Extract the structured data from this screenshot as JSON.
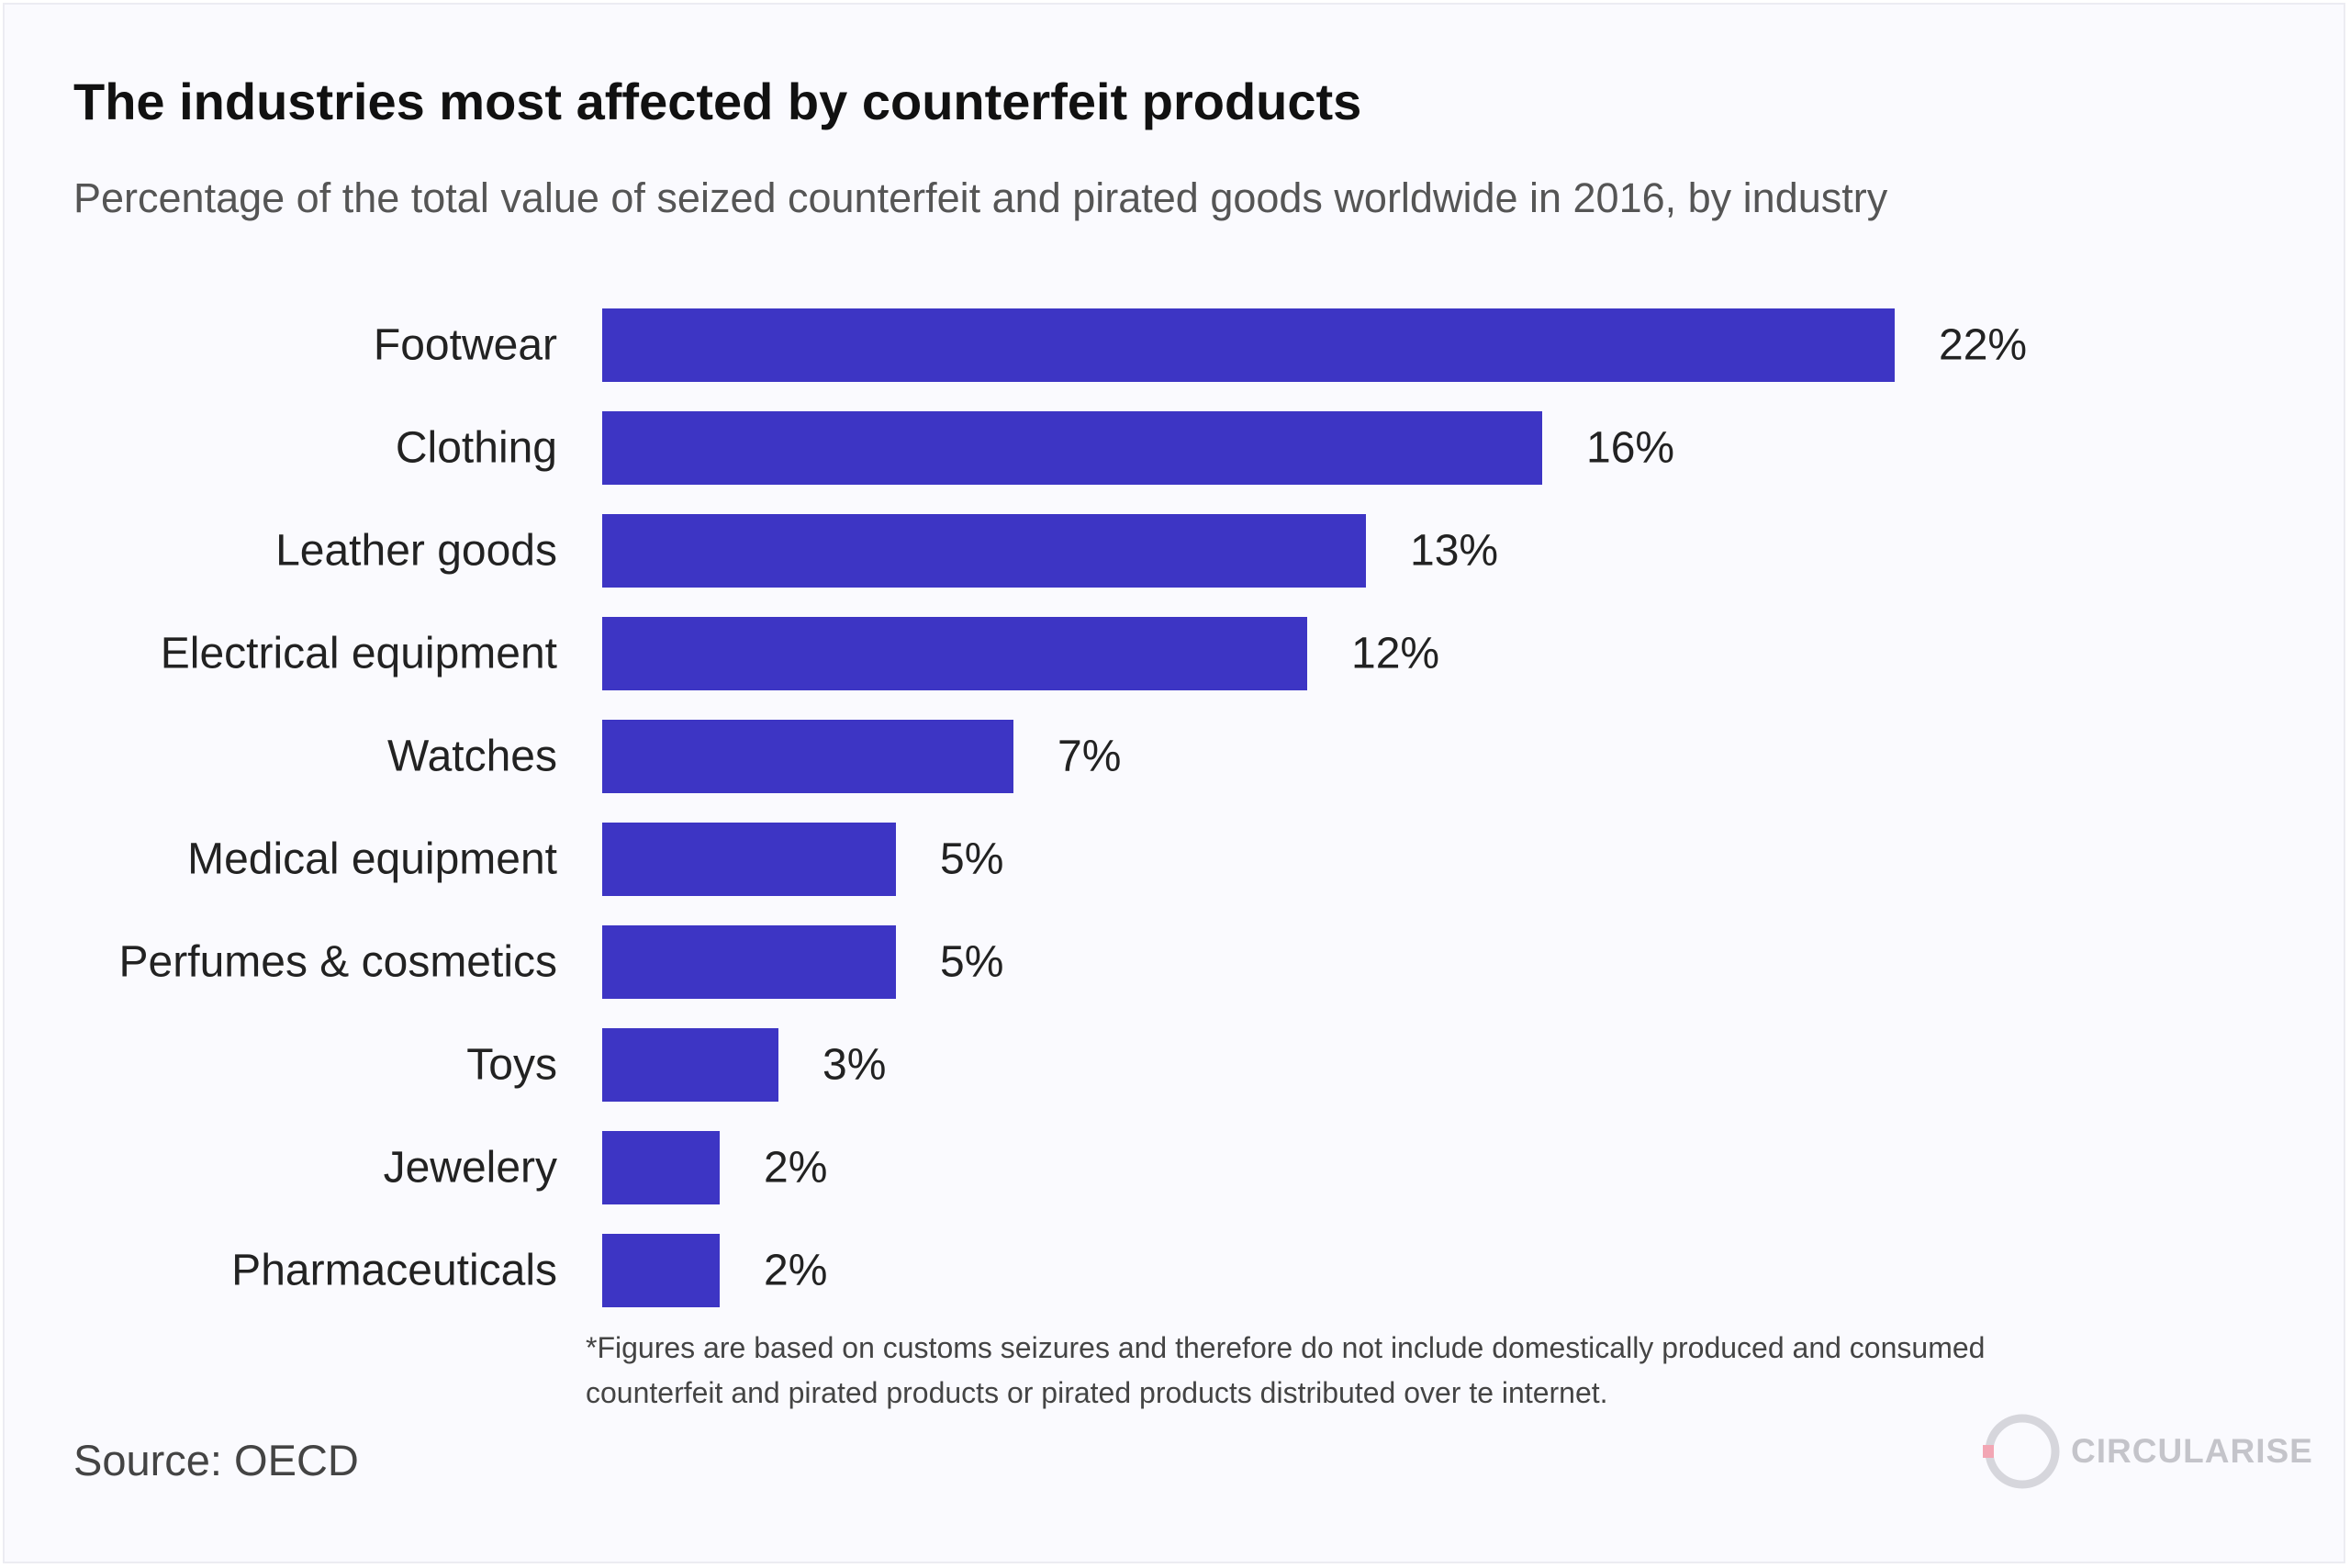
{
  "title": "The industries most affected by counterfeit products",
  "subtitle": "Percentage of the total value of seized counterfeit and pirated goods worldwide in 2016, by industry",
  "footnote": "*Figures are based on customs seizures and therefore do not include domestically produced and consumed counterfeit and pirated products or pirated products distributed over te internet.",
  "source": "Source: OECD",
  "logo_text": "CIRCULARISE",
  "colors": {
    "bar": "#3d35c4",
    "background": "#fafafe",
    "logo_ring": "#d6d6dc",
    "logo_accent": "#f2a6b4"
  },
  "chart_data": {
    "type": "bar",
    "orientation": "horizontal",
    "categories": [
      "Footwear",
      "Clothing",
      "Leather goods",
      "Electrical equipment",
      "Watches",
      "Medical equipment",
      "Perfumes & cosmetics",
      "Toys",
      "Jewelery",
      "Pharmaceuticals"
    ],
    "values": [
      22,
      16,
      13,
      12,
      7,
      5,
      5,
      3,
      2,
      2
    ],
    "value_labels": [
      "22%",
      "16%",
      "13%",
      "12%",
      "7%",
      "5%",
      "5%",
      "3%",
      "2%",
      "2%"
    ],
    "title": "The industries most affected by counterfeit products",
    "xlabel": "",
    "ylabel": "",
    "xlim": [
      0,
      22
    ],
    "grid": false,
    "legend": "none"
  }
}
